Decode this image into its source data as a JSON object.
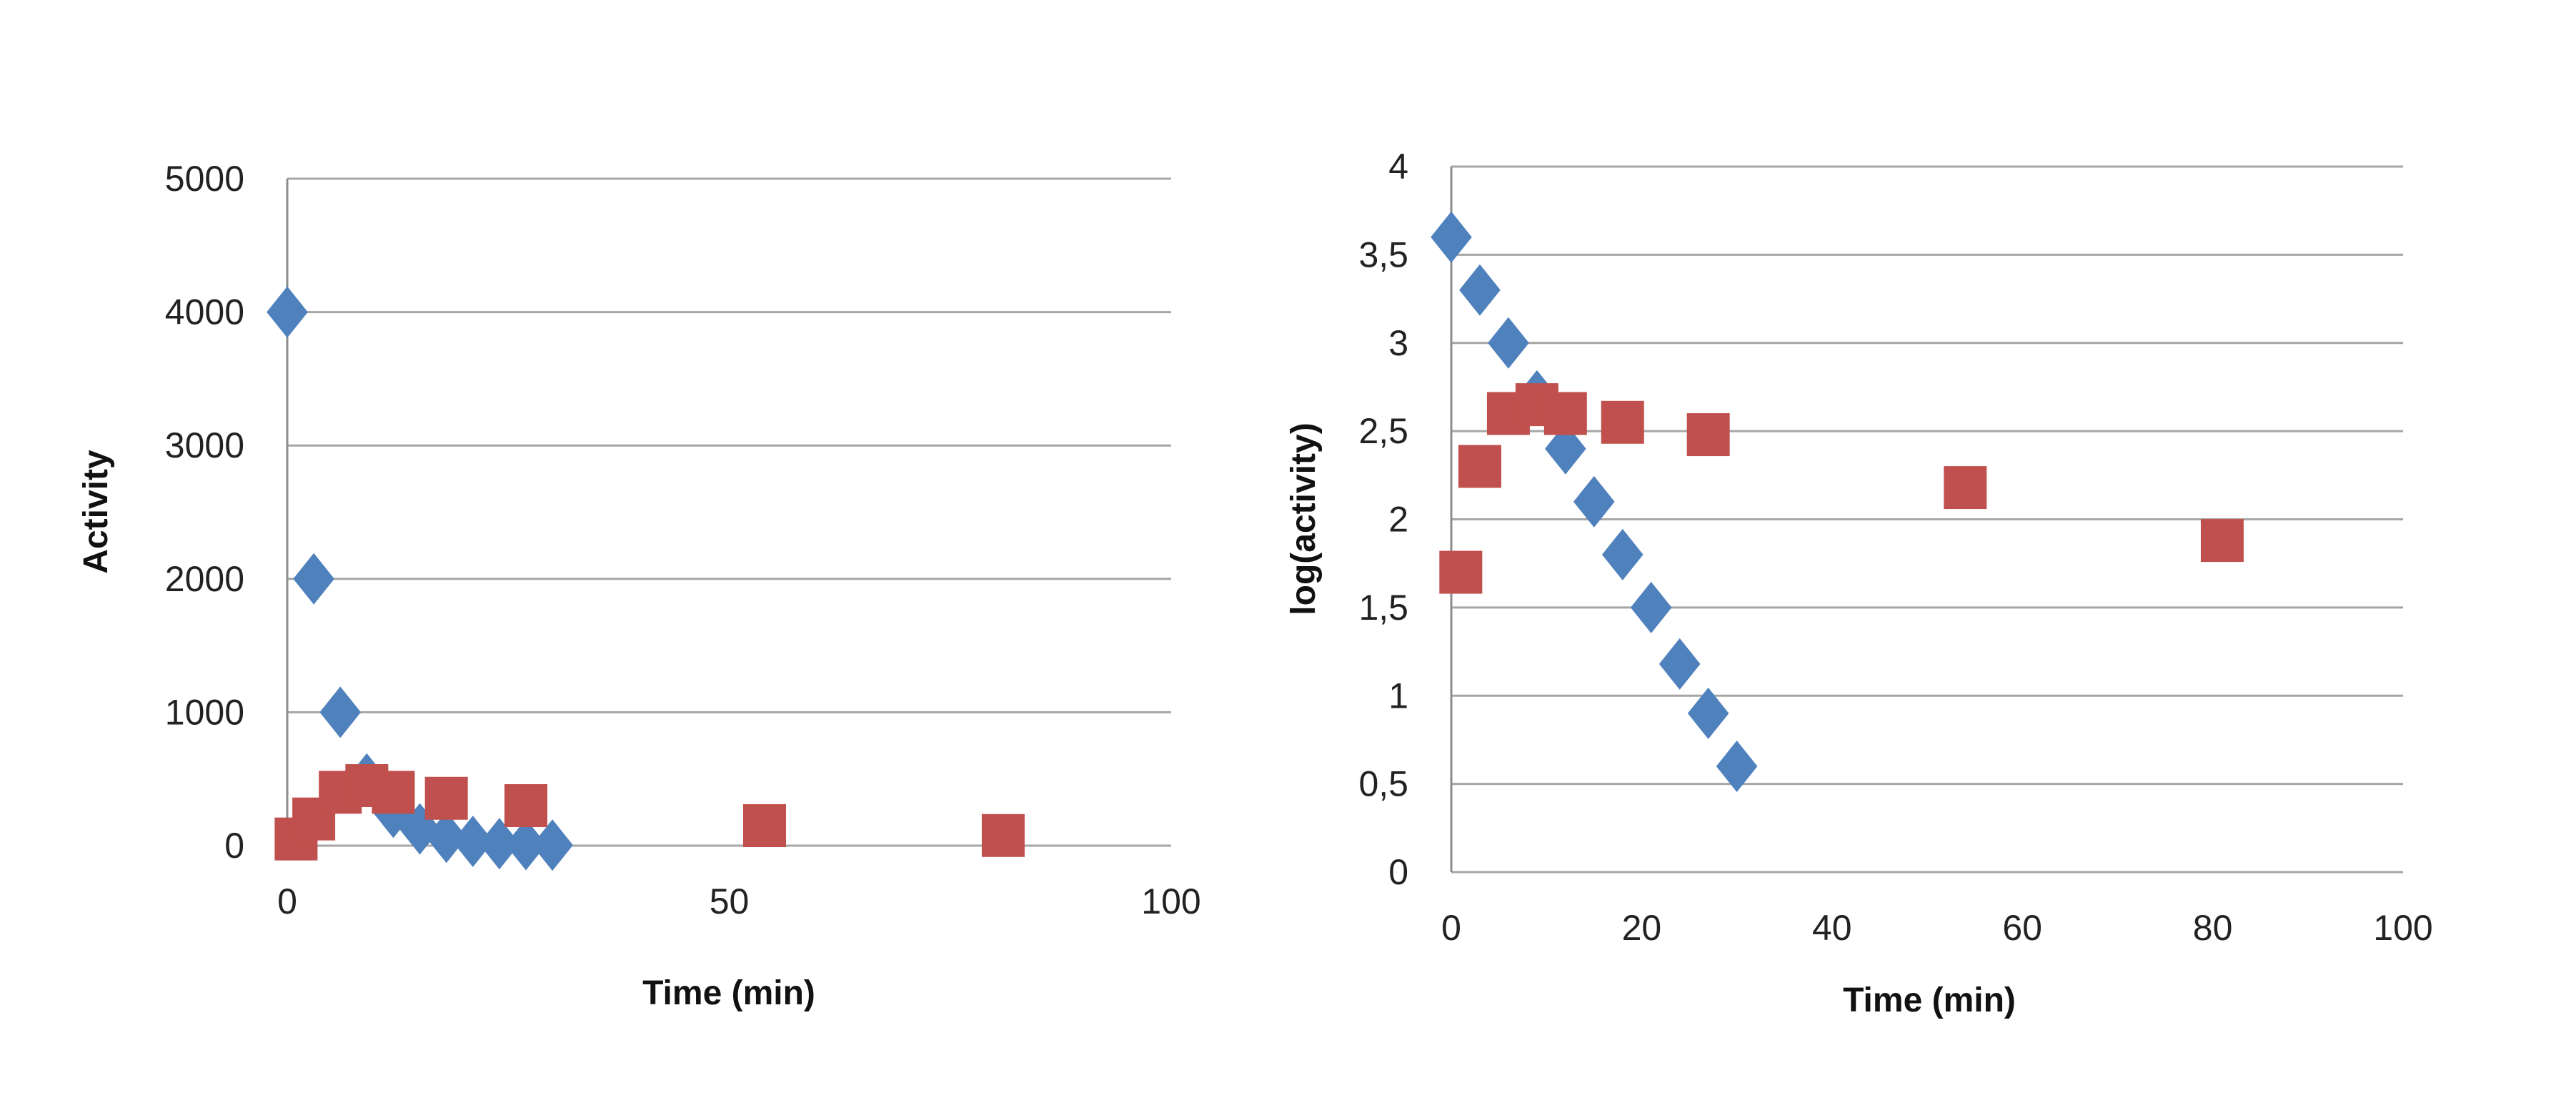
{
  "chart_data": [
    {
      "type": "scatter",
      "xlabel": "Time (min)",
      "ylabel": "Activity",
      "xlim": [
        0,
        100
      ],
      "ylim": [
        0,
        5000
      ],
      "xticks": [
        "0",
        "50",
        "100"
      ],
      "yticks": [
        "0",
        "1000",
        "2000",
        "3000",
        "4000",
        "5000"
      ],
      "grid": "horizontal",
      "legend": "none",
      "series": [
        {
          "color": "#4f81bd",
          "marker": "diamond",
          "x": [
            0,
            3,
            6,
            9,
            12,
            15,
            18,
            21,
            24,
            27,
            30
          ],
          "y": [
            4000,
            2000,
            1000,
            500,
            250,
            125,
            63,
            32,
            15,
            8,
            4
          ]
        },
        {
          "color": "#c0504d",
          "marker": "square",
          "x": [
            1,
            3,
            6,
            9,
            12,
            18,
            27,
            54,
            81
          ],
          "y": [
            50,
            200,
            400,
            450,
            400,
            355,
            300,
            150,
            76
          ]
        }
      ]
    },
    {
      "type": "scatter",
      "xlabel": "Time (min)",
      "ylabel": "log(activity)",
      "xlim": [
        0,
        100
      ],
      "ylim": [
        0,
        4
      ],
      "xticks": [
        "0",
        "20",
        "40",
        "60",
        "80",
        "100"
      ],
      "yticks": [
        "0",
        "0,5",
        "1",
        "1,5",
        "2",
        "2,5",
        "3",
        "3,5",
        "4"
      ],
      "grid": "horizontal",
      "legend": "none",
      "series": [
        {
          "color": "#4f81bd",
          "marker": "diamond",
          "x": [
            0,
            3,
            6,
            9,
            12,
            15,
            18,
            21,
            24,
            27,
            30
          ],
          "y": [
            3.6,
            3.3,
            3.0,
            2.7,
            2.4,
            2.1,
            1.8,
            1.5,
            1.18,
            0.9,
            0.6
          ]
        },
        {
          "color": "#c0504d",
          "marker": "square",
          "x": [
            1,
            3,
            6,
            9,
            12,
            18,
            27,
            54,
            81
          ],
          "y": [
            1.7,
            2.3,
            2.6,
            2.65,
            2.6,
            2.55,
            2.48,
            2.18,
            1.88
          ]
        }
      ]
    }
  ]
}
